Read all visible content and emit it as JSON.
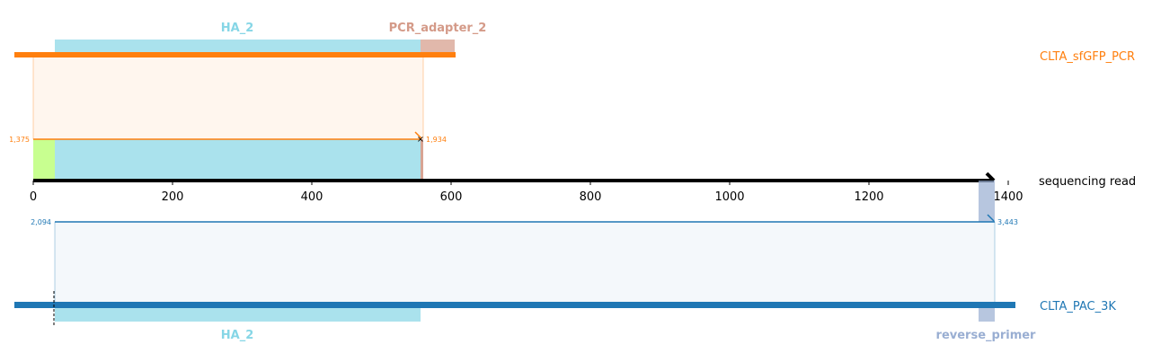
{
  "colors": {
    "target_top": "#ff7f0e",
    "target_bottom": "#1f77b4",
    "feature_ha": "#86d6e6",
    "feature_pcr_adapter": "#d49a88",
    "feature_reverse_primer": "#99aed2",
    "insertion_green": "#aaff55",
    "axis": "#000000"
  },
  "read": {
    "label": "sequencing read",
    "axis_max": 1400,
    "length": 1375
  },
  "ticks": [
    "0",
    "200",
    "400",
    "600",
    "800",
    "1000",
    "1200",
    "1400"
  ],
  "top": {
    "target_label": "CLTA_sfGFP_PCR",
    "features": [
      {
        "name": "HA_2",
        "color_key": "feature_ha"
      },
      {
        "name": "PCR_adapter_2",
        "color_key": "feature_pcr_adapter"
      }
    ],
    "alignment": {
      "ref_start": "1,375",
      "ref_end": "1,934",
      "read_start": 0,
      "read_end": 559
    }
  },
  "bottom": {
    "target_label": "CLTA_PAC_3K",
    "features": [
      {
        "name": "HA_2",
        "color_key": "feature_ha"
      },
      {
        "name": "reverse_primer",
        "color_key": "feature_reverse_primer"
      }
    ],
    "alignment": {
      "ref_start": "2,094",
      "ref_end": "3,443",
      "read_start": 30,
      "read_end": 1375
    }
  }
}
